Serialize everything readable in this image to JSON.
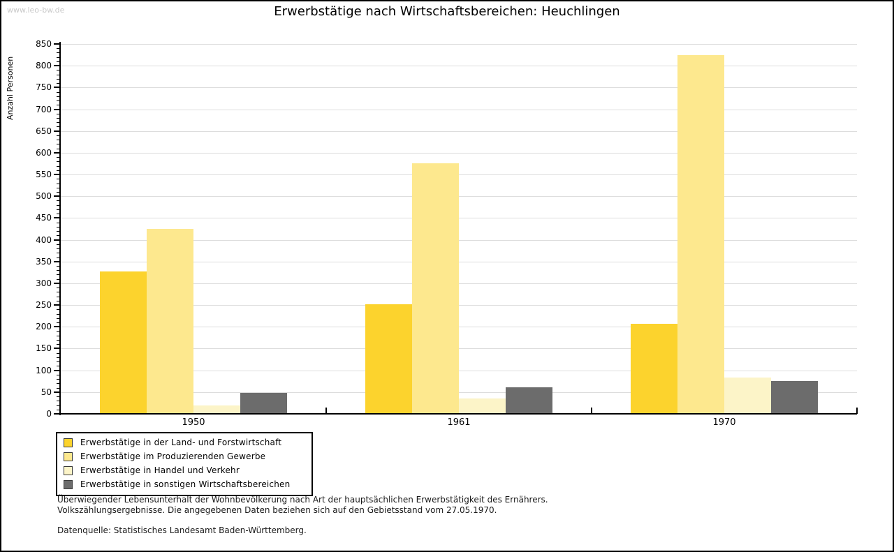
{
  "watermark": "www.leo-bw.de",
  "title": "Erwerbstätige nach Wirtschaftsbereichen: Heuchlingen",
  "chart_data": {
    "type": "bar",
    "title": "Erwerbstätige nach Wirtschaftsbereichen: Heuchlingen",
    "xlabel": "",
    "ylabel": "Anzahl Personen",
    "categories": [
      "1950",
      "1961",
      "1970"
    ],
    "series": [
      {
        "name": "Erwerbstätige in der Land- und Forstwirtschaft",
        "color": "#FCD32D",
        "values": [
          327,
          252,
          207
        ]
      },
      {
        "name": "Erwerbstätige im Produzierenden Gewerbe",
        "color": "#FDE88E",
        "values": [
          425,
          575,
          825
        ]
      },
      {
        "name": "Erwerbstätige in Handel und Verkehr",
        "color": "#FCF4C8",
        "values": [
          19,
          35,
          84
        ]
      },
      {
        "name": "Erwerbstätige in sonstigen Wirtschaftsbereichen",
        "color": "#6C6C6C",
        "values": [
          48,
          61,
          75
        ]
      }
    ],
    "ylim": [
      0,
      850
    ],
    "ytick_step": 50,
    "minor_tick_step": 10,
    "grid": true,
    "gridline_color": "#DDDDDD",
    "axis_color": "#000000",
    "legend_position": "bottom-left"
  },
  "footnotes": {
    "line1": "Überwiegender Lebensunterhalt der Wohnbevölkerung nach Art der hauptsächlichen Erwerbstätigkeit des Ernährers.",
    "line2": "Volkszählungsergebnisse. Die angegebenen Daten beziehen sich auf den Gebietsstand vom 27.05.1970.",
    "source": "Datenquelle: Statistisches Landesamt Baden-Württemberg."
  }
}
